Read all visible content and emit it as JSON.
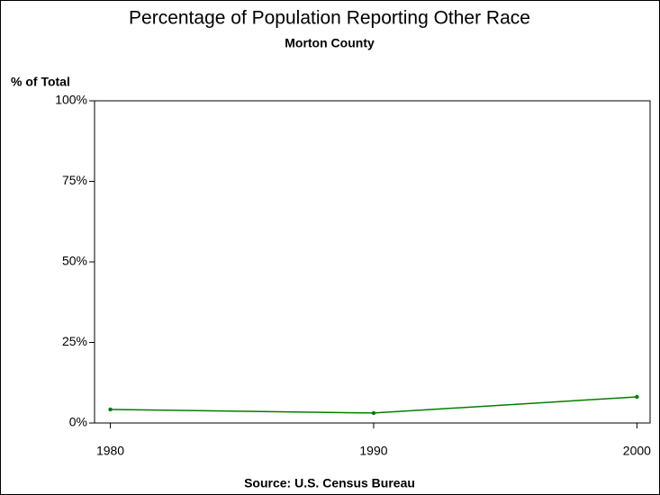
{
  "chart_data": {
    "type": "line",
    "title": "Percentage of Population Reporting Other Race",
    "subtitle": "Morton County",
    "y_label": "% of Total",
    "footnote": "Source: U.S. Census Bureau",
    "x": [
      1980,
      1990,
      2000
    ],
    "xlim": [
      1979.4,
      2000.5
    ],
    "xticks": [
      1980,
      1990,
      2000
    ],
    "series": [
      {
        "name": "Other Race",
        "color": "#007f00",
        "values": [
          4.2,
          3.1,
          8.1
        ]
      }
    ],
    "ylim": [
      0,
      100
    ],
    "yticks": [
      {
        "value": 0,
        "label": "0%"
      },
      {
        "value": 25,
        "label": "25%"
      },
      {
        "value": 50,
        "label": "50%"
      },
      {
        "value": 75,
        "label": "75%"
      },
      {
        "value": 100,
        "label": "100%"
      }
    ]
  }
}
